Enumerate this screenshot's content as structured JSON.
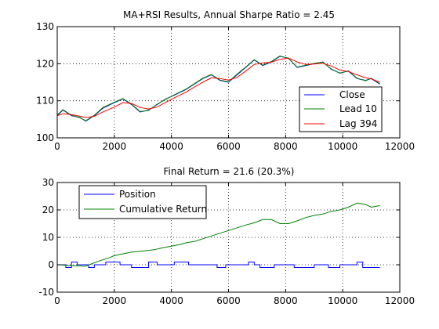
{
  "chart_data": [
    {
      "type": "line",
      "title": "MA+RSI Results, Annual Sharpe Ratio = 2.45",
      "xlim": [
        0,
        12000
      ],
      "ylim": [
        100,
        130
      ],
      "xticks": [
        0,
        2000,
        4000,
        6000,
        8000,
        10000,
        12000
      ],
      "yticks": [
        100,
        110,
        120,
        130
      ],
      "xtick_labels": [
        "0",
        "2000",
        "4000",
        "6000",
        "8000",
        "10000",
        "12000"
      ],
      "ytick_labels": [
        "100",
        "110",
        "120",
        "130"
      ],
      "grid": true,
      "legend_position": "lower-right",
      "x": [
        0,
        200,
        500,
        800,
        1000,
        1300,
        1600,
        2000,
        2300,
        2600,
        2900,
        3200,
        3500,
        3800,
        4100,
        4500,
        4800,
        5100,
        5400,
        5700,
        6000,
        6300,
        6600,
        6900,
        7200,
        7500,
        7800,
        8100,
        8400,
        8700,
        9000,
        9300,
        9600,
        9900,
        10200,
        10500,
        10800,
        11000,
        11300
      ],
      "series": [
        {
          "name": "Close",
          "color": "#0000ff",
          "values": [
            106,
            107.5,
            106,
            105.5,
            104.5,
            106,
            108,
            109.5,
            110.5,
            109,
            107,
            107.5,
            109,
            110.5,
            111.5,
            113,
            114.5,
            116,
            117,
            115.5,
            115,
            117,
            119,
            121,
            119.5,
            120.5,
            122,
            121.5,
            119,
            119.5,
            120,
            120.5,
            118.5,
            117.5,
            118,
            116,
            115.5,
            116,
            114.5
          ]
        },
        {
          "name": "Lead 10",
          "color": "#008000",
          "values": [
            106.2,
            107.6,
            106.1,
            105.4,
            104.6,
            106.1,
            108.2,
            109.6,
            110.6,
            109.1,
            107.1,
            107.4,
            109.1,
            110.4,
            111.6,
            113.1,
            114.6,
            116.1,
            117.1,
            115.6,
            115.1,
            117.2,
            119.1,
            121.1,
            119.6,
            120.6,
            122.1,
            121.4,
            119.1,
            119.6,
            120.1,
            120.4,
            118.6,
            117.4,
            118.1,
            116.1,
            115.4,
            116.1,
            114.6
          ]
        },
        {
          "name": "Lag 394",
          "color": "#ff0000",
          "values": [
            106,
            106.5,
            106.3,
            105.8,
            105.5,
            105.8,
            107,
            108.3,
            109.5,
            109.3,
            108.2,
            107.8,
            108.3,
            109.6,
            110.8,
            112.3,
            113.7,
            115,
            116.2,
            116,
            115.6,
            116.3,
            118,
            119.8,
            120.2,
            120.4,
            121.2,
            121.5,
            120.5,
            119.8,
            119.9,
            120.1,
            119.4,
            118.3,
            117.9,
            117,
            116.2,
            115.9,
            115
          ]
        }
      ]
    },
    {
      "type": "line",
      "title": "Final Return = 21.6 (20.3%)",
      "xlim": [
        0,
        12000
      ],
      "ylim": [
        -10,
        30
      ],
      "xticks": [
        0,
        2000,
        4000,
        6000,
        8000,
        10000,
        12000
      ],
      "yticks": [
        -10,
        0,
        10,
        20,
        30
      ],
      "xtick_labels": [
        "0",
        "2000",
        "4000",
        "6000",
        "8000",
        "10000",
        "12000"
      ],
      "ytick_labels": [
        "-10",
        "0",
        "10",
        "20",
        "30"
      ],
      "grid": true,
      "legend_position": "top-left",
      "series": [
        {
          "name": "Position",
          "color": "#0000ff",
          "x": [
            0,
            300,
            300,
            500,
            500,
            700,
            700,
            1100,
            1100,
            1300,
            1300,
            1700,
            1700,
            2200,
            2200,
            2600,
            2600,
            3200,
            3200,
            3500,
            3500,
            4100,
            4100,
            4600,
            4600,
            5600,
            5600,
            5900,
            5900,
            6700,
            6700,
            6900,
            6900,
            7100,
            7100,
            7600,
            7600,
            8300,
            8300,
            9000,
            9000,
            9500,
            9500,
            9900,
            9900,
            10500,
            10500,
            10700,
            10700,
            11300
          ],
          "values": [
            0,
            0,
            -1,
            -1,
            1,
            1,
            0,
            0,
            -1,
            -1,
            0,
            0,
            1,
            1,
            0,
            0,
            -1,
            -1,
            1,
            1,
            0,
            0,
            1,
            1,
            0,
            0,
            -1,
            -1,
            0,
            0,
            1,
            1,
            0,
            0,
            -1,
            -1,
            0,
            0,
            -1,
            -1,
            0,
            0,
            -1,
            -1,
            0,
            0,
            1,
            1,
            -1,
            -1
          ]
        },
        {
          "name": "Cumulative Return",
          "color": "#008000",
          "x": [
            0,
            500,
            1000,
            1200,
            1500,
            1800,
            2000,
            2300,
            2600,
            3000,
            3400,
            3700,
            4000,
            4300,
            4500,
            4800,
            5100,
            5400,
            5700,
            6000,
            6300,
            6600,
            6900,
            7200,
            7500,
            7800,
            8100,
            8400,
            8700,
            9000,
            9300,
            9600,
            9900,
            10200,
            10500,
            10800,
            11000,
            11300
          ],
          "values": [
            0,
            -0.3,
            -0.5,
            0.3,
            1.5,
            2.5,
            3.3,
            4,
            4.6,
            5,
            5.5,
            6.2,
            6.8,
            7.4,
            8,
            8.5,
            9.5,
            10.5,
            11.5,
            12.5,
            13.5,
            14.5,
            15.3,
            16.5,
            16.5,
            15,
            15,
            16,
            17.2,
            18,
            18.5,
            19.5,
            20,
            21,
            22.5,
            22,
            21,
            21.6
          ]
        }
      ]
    }
  ]
}
